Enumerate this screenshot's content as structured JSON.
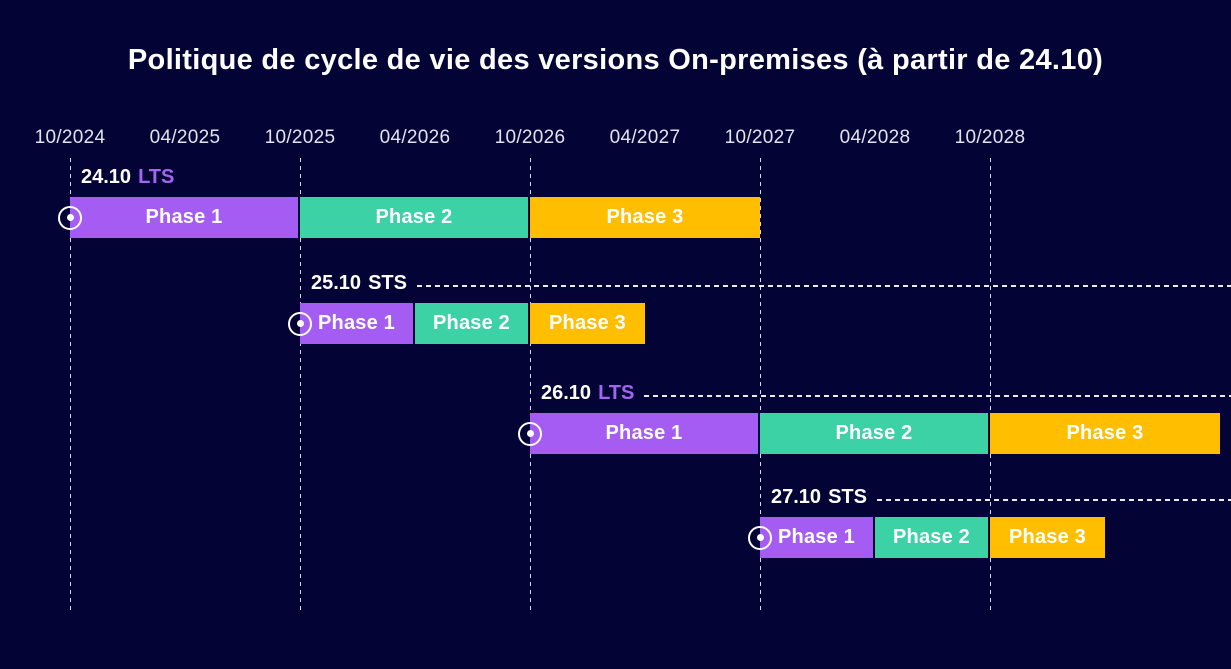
{
  "title": "Politique de cycle de vie des versions On-premises (à partir de 24.10)",
  "colors": {
    "background": "#030336",
    "title_text": "#FFFFFF",
    "axis_text": "#E3E3EE",
    "dashed_lines": "#FFFFFF",
    "phase1": "#A55CF3",
    "phase2": "#3DD1A6",
    "phase3": "#FFBE00",
    "lts_badge_text": "#A266F2",
    "sts_badge_text": "#FFFFFF",
    "bar_text": "#FFFFFF"
  },
  "chart_data": {
    "type": "bar",
    "variant": "horizontal-gantt-timeline",
    "title": "Politique de cycle de vie des versions On-premises (à partir de 24.10)",
    "x_axis": {
      "unit": "MM/YYYY",
      "tick_labels": [
        "10/2024",
        "04/2025",
        "10/2025",
        "04/2026",
        "10/2026",
        "04/2027",
        "10/2027",
        "04/2028",
        "10/2028"
      ],
      "gridline_ticks": [
        "10/2024",
        "10/2025",
        "10/2026",
        "10/2027",
        "10/2028"
      ],
      "visible_range": [
        "10/2024",
        "10/2029"
      ]
    },
    "legend": "none",
    "rows": [
      {
        "version": "24.10",
        "release_type": "LTS",
        "release_date": "10/2024",
        "leader_line": false,
        "phases": [
          {
            "label": "Phase 1",
            "start": "10/2024",
            "end": "10/2025",
            "color_key": "phase1"
          },
          {
            "label": "Phase 2",
            "start": "10/2025",
            "end": "10/2026",
            "color_key": "phase2"
          },
          {
            "label": "Phase 3",
            "start": "10/2026",
            "end": "10/2027",
            "color_key": "phase3"
          }
        ]
      },
      {
        "version": "25.10",
        "release_type": "STS",
        "release_date": "10/2025",
        "leader_line": true,
        "phases": [
          {
            "label": "Phase 1",
            "start": "10/2025",
            "end": "04/2026",
            "color_key": "phase1"
          },
          {
            "label": "Phase 2",
            "start": "04/2026",
            "end": "10/2026",
            "color_key": "phase2"
          },
          {
            "label": "Phase 3",
            "start": "10/2026",
            "end": "04/2027",
            "color_key": "phase3"
          }
        ]
      },
      {
        "version": "26.10",
        "release_type": "LTS",
        "release_date": "10/2026",
        "leader_line": true,
        "phases": [
          {
            "label": "Phase 1",
            "start": "10/2026",
            "end": "10/2027",
            "color_key": "phase1"
          },
          {
            "label": "Phase 2",
            "start": "10/2027",
            "end": "10/2028",
            "color_key": "phase2"
          },
          {
            "label": "Phase 3",
            "start": "10/2028",
            "end": "10/2029",
            "color_key": "phase3"
          }
        ]
      },
      {
        "version": "27.10",
        "release_type": "STS",
        "release_date": "10/2027",
        "leader_line": true,
        "phases": [
          {
            "label": "Phase 1",
            "start": "10/2027",
            "end": "04/2028",
            "color_key": "phase1"
          },
          {
            "label": "Phase 2",
            "start": "04/2028",
            "end": "10/2028",
            "color_key": "phase2"
          },
          {
            "label": "Phase 3",
            "start": "10/2028",
            "end": "04/2029",
            "color_key": "phase3"
          }
        ]
      }
    ]
  }
}
